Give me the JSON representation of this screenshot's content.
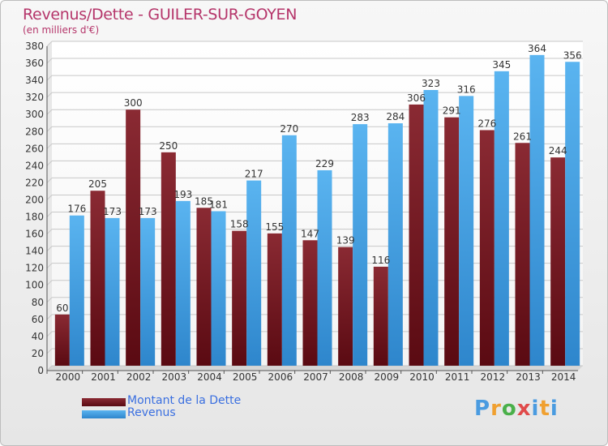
{
  "header": {
    "title": "Revenus/Dette - GUILER-SUR-GOYEN",
    "subtitle": "(en milliers d'€)"
  },
  "legend": {
    "debt_label": "Montant de la Dette",
    "revenue_label": "Revenus"
  },
  "logo": {
    "text": "Proxiti"
  },
  "colors": {
    "debt": "#7a1e28",
    "revenue": "#4aa6e8",
    "title": "#b5356a",
    "legend_text": "#3a6fe0"
  },
  "chart_data": {
    "type": "bar",
    "title": "Revenus/Dette - GUILER-SUR-GOYEN",
    "ylabel": "(en milliers d'€)",
    "xlabel": "",
    "categories": [
      "2000",
      "2001",
      "2002",
      "2003",
      "2004",
      "2005",
      "2006",
      "2007",
      "2008",
      "2009",
      "2010",
      "2011",
      "2012",
      "2013",
      "2014"
    ],
    "series": [
      {
        "name": "Montant de la Dette",
        "values": [
          60,
          205,
          300,
          250,
          185,
          158,
          155,
          147,
          139,
          116,
          306,
          291,
          276,
          261,
          244
        ]
      },
      {
        "name": "Revenus",
        "values": [
          176,
          173,
          173,
          193,
          181,
          217,
          270,
          229,
          283,
          284,
          323,
          316,
          345,
          364,
          356
        ]
      }
    ],
    "ylim": [
      0,
      380
    ],
    "yticks": [
      0,
      20,
      40,
      60,
      80,
      100,
      120,
      140,
      160,
      180,
      200,
      220,
      240,
      260,
      280,
      300,
      320,
      340,
      360,
      380
    ],
    "grid": true,
    "legend": "bottom-left"
  }
}
